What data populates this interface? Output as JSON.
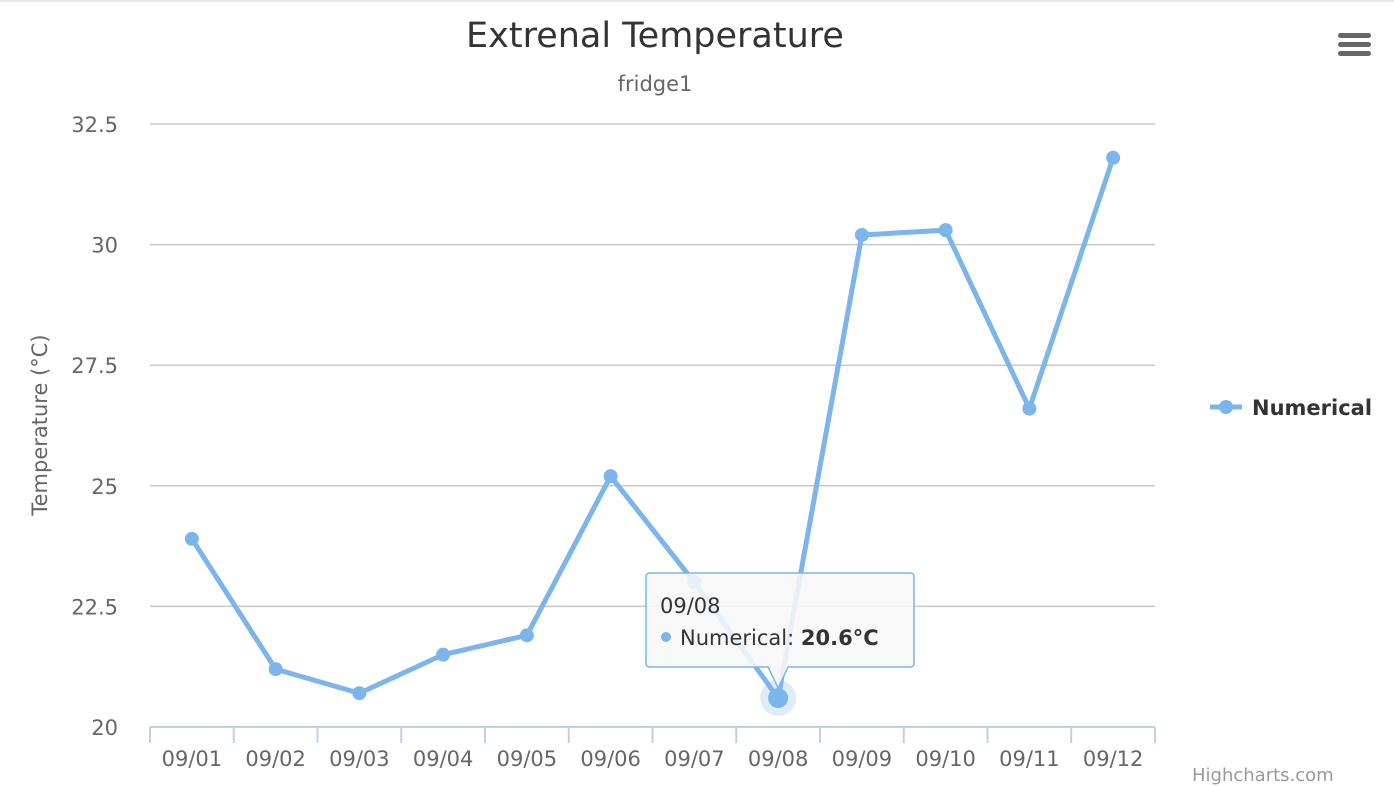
{
  "colors": {
    "series": "#7cb5ec",
    "grid": "#c8c8c8",
    "axis_line": "#c0d0e0",
    "text": "#333333",
    "muted": "#666666",
    "tooltip_border": "#7cb5ec"
  },
  "menu": {
    "icon": "hamburger-menu-icon"
  },
  "credits": {
    "text": "Highcharts.com"
  },
  "chart_data": {
    "type": "line",
    "title": "Extrenal Temperature",
    "subtitle": "fridge1",
    "ylabel": "Temperature (°C)",
    "xlabel": "",
    "categories": [
      "09/01",
      "09/02",
      "09/03",
      "09/04",
      "09/05",
      "09/06",
      "09/07",
      "09/08",
      "09/09",
      "09/10",
      "09/11",
      "09/12"
    ],
    "ylim": [
      20,
      32.5
    ],
    "yticks": [
      "20",
      "22.5",
      "25",
      "27.5",
      "30",
      "32.5"
    ],
    "grid": true,
    "legend_position": "right",
    "series": [
      {
        "name": "Numerical",
        "values": [
          23.9,
          21.2,
          20.7,
          21.5,
          21.9,
          25.2,
          23.0,
          20.6,
          30.2,
          30.3,
          26.6,
          31.8
        ]
      }
    ],
    "tooltip": {
      "category": "09/08",
      "series_label": "Numerical: ",
      "value_text": "20.6°C"
    }
  }
}
